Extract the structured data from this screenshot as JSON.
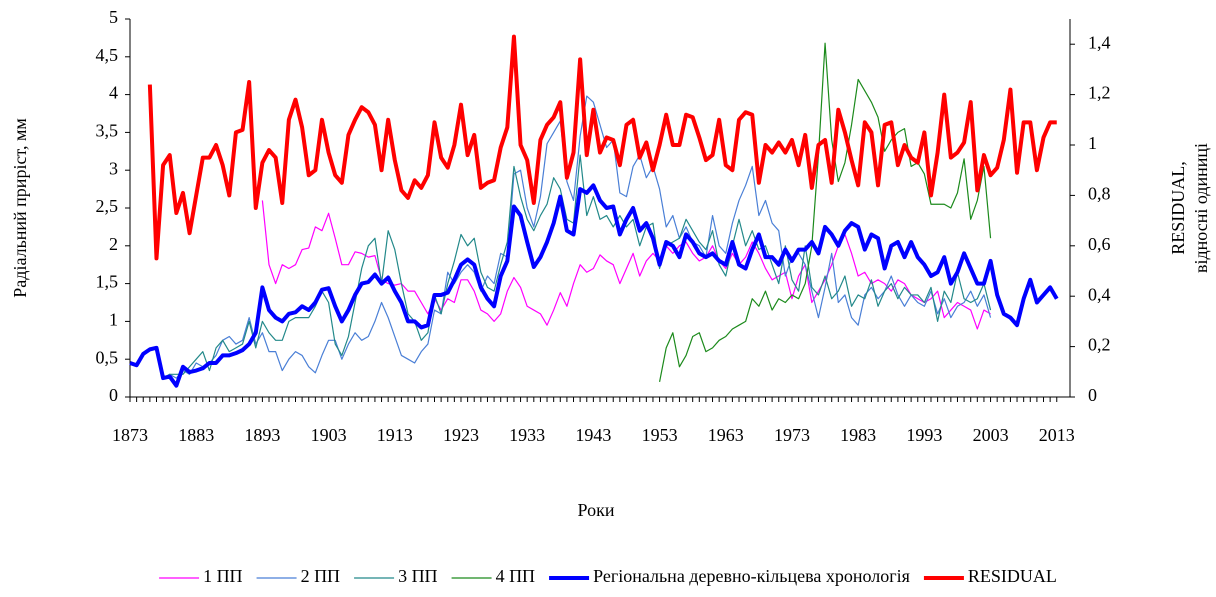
{
  "chart_data": {
    "type": "line",
    "x_label": "Роки",
    "y_label": "Радіальний приріст, мм",
    "y2_label": [
      "RESIDUAL,",
      "відносні одиниці"
    ],
    "xlim": [
      1873,
      2015
    ],
    "xticks": [
      1873,
      1883,
      1893,
      1903,
      1913,
      1923,
      1933,
      1943,
      1953,
      1963,
      1973,
      1983,
      1993,
      2003,
      2013
    ],
    "ylim": [
      0,
      5
    ],
    "yticks": [
      0,
      {
        "value": 0.5,
        "label": "0,5"
      },
      1,
      {
        "value": 1.5,
        "label": "1,5"
      },
      2,
      {
        "value": 2.5,
        "label": "2,5"
      },
      3,
      {
        "value": 3.5,
        "label": "3,5"
      },
      4,
      {
        "value": 4.5,
        "label": "4,5"
      },
      5
    ],
    "y2lim": [
      0,
      1.5
    ],
    "y2ticks": [
      0,
      {
        "value": 0.2,
        "label": "0,2"
      },
      {
        "value": 0.4,
        "label": "0,4"
      },
      {
        "value": 0.6,
        "label": "0,6"
      },
      {
        "value": 0.8,
        "label": "0,8"
      },
      1,
      {
        "value": 1.2,
        "label": "1,2"
      },
      {
        "value": 1.4,
        "label": "1,4"
      }
    ],
    "grid": false,
    "legend": "bottom",
    "x": [
      1873,
      1874,
      1875,
      1876,
      1877,
      1878,
      1879,
      1880,
      1881,
      1882,
      1883,
      1884,
      1885,
      1886,
      1887,
      1888,
      1889,
      1890,
      1891,
      1892,
      1893,
      1894,
      1895,
      1896,
      1897,
      1898,
      1899,
      1900,
      1901,
      1902,
      1903,
      1904,
      1905,
      1906,
      1907,
      1908,
      1909,
      1910,
      1911,
      1912,
      1913,
      1914,
      1915,
      1916,
      1917,
      1918,
      1919,
      1920,
      1921,
      1922,
      1923,
      1924,
      1925,
      1926,
      1927,
      1928,
      1929,
      1930,
      1931,
      1932,
      1933,
      1934,
      1935,
      1936,
      1937,
      1938,
      1939,
      1940,
      1941,
      1942,
      1943,
      1944,
      1945,
      1946,
      1947,
      1948,
      1949,
      1950,
      1951,
      1952,
      1953,
      1954,
      1955,
      1956,
      1957,
      1958,
      1959,
      1960,
      1961,
      1962,
      1963,
      1964,
      1965,
      1966,
      1967,
      1968,
      1969,
      1970,
      1971,
      1972,
      1973,
      1974,
      1975,
      1976,
      1977,
      1978,
      1979,
      1980,
      1981,
      1982,
      1983,
      1984,
      1985,
      1986,
      1987,
      1988,
      1989,
      1990,
      1991,
      1992,
      1993,
      1994,
      1995,
      1996,
      1997,
      1998,
      1999,
      2000,
      2001,
      2002,
      2003,
      2004,
      2005,
      2006,
      2007,
      2008,
      2009,
      2010,
      2011,
      2012,
      2013
    ],
    "series": [
      {
        "name": "1 ПП",
        "color": "#ff00ff",
        "line_width": 1.2,
        "values": [
          null,
          null,
          null,
          null,
          null,
          null,
          null,
          null,
          null,
          null,
          null,
          null,
          null,
          null,
          null,
          null,
          null,
          null,
          null,
          null,
          2.6,
          1.75,
          1.5,
          1.75,
          1.7,
          1.75,
          1.95,
          1.97,
          2.25,
          2.2,
          2.43,
          2.1,
          1.75,
          1.75,
          1.92,
          1.9,
          1.85,
          1.87,
          1.55,
          1.5,
          1.48,
          1.5,
          1.4,
          1.4,
          1.25,
          1.1,
          1.3,
          1.15,
          1.3,
          1.25,
          1.55,
          1.55,
          1.4,
          1.15,
          1.1,
          1.0,
          1.1,
          1.4,
          1.58,
          1.45,
          1.2,
          1.15,
          1.1,
          0.95,
          1.15,
          1.38,
          1.2,
          1.5,
          1.75,
          1.65,
          1.7,
          1.88,
          1.8,
          1.75,
          1.5,
          1.7,
          1.9,
          1.6,
          1.8,
          1.9,
          1.8,
          2.0,
          1.9,
          2.0,
          2.05,
          1.9,
          1.8,
          1.85,
          2.0,
          1.8,
          1.7,
          1.9,
          1.75,
          1.85,
          2.05,
          1.9,
          1.7,
          1.55,
          1.6,
          1.65,
          1.3,
          1.6,
          1.75,
          1.25,
          1.4,
          1.55,
          1.75,
          2.0,
          2.15,
          1.9,
          1.6,
          1.65,
          1.5,
          1.55,
          1.5,
          1.4,
          1.55,
          1.5,
          1.35,
          1.3,
          1.25,
          1.3,
          1.4,
          1.05,
          1.15,
          1.25,
          1.2,
          1.15,
          0.9,
          1.15,
          1.1,
          null,
          null,
          null,
          null,
          null,
          null,
          null,
          null,
          null,
          null
        ]
      },
      {
        "name": "2 ПП",
        "color": "#4a7fd6",
        "line_width": 1.2,
        "values": [
          null,
          null,
          null,
          null,
          null,
          0.25,
          0.3,
          0.25,
          0.35,
          0.3,
          0.45,
          0.4,
          0.45,
          0.55,
          0.75,
          0.8,
          0.7,
          0.75,
          1.05,
          0.7,
          0.85,
          0.6,
          0.6,
          0.35,
          0.5,
          0.6,
          0.55,
          0.4,
          0.32,
          0.55,
          0.75,
          0.75,
          0.5,
          0.7,
          0.85,
          0.75,
          0.8,
          1.0,
          1.25,
          1.05,
          0.8,
          0.55,
          0.5,
          0.45,
          0.6,
          0.7,
          1.15,
          1.1,
          1.65,
          1.5,
          1.65,
          1.75,
          1.65,
          1.4,
          1.6,
          1.5,
          1.9,
          1.85,
          2.95,
          3.0,
          2.5,
          2.25,
          2.65,
          3.35,
          3.5,
          3.65,
          2.85,
          2.6,
          3.45,
          3.98,
          3.9,
          3.6,
          3.3,
          3.4,
          2.7,
          2.65,
          3.05,
          3.2,
          2.9,
          3.05,
          2.75,
          2.25,
          2.4,
          2.1,
          2.25,
          2.05,
          2.0,
          1.85,
          2.4,
          2.0,
          1.9,
          2.3,
          2.6,
          2.8,
          3.05,
          2.4,
          2.6,
          2.3,
          2.2,
          1.6,
          1.85,
          1.9,
          1.75,
          1.4,
          1.05,
          1.45,
          1.9,
          1.25,
          1.35,
          1.05,
          0.95,
          1.35,
          1.45,
          1.3,
          1.4,
          1.6,
          1.35,
          1.2,
          1.35,
          1.25,
          1.2,
          1.4,
          1.1,
          1.3,
          1.05,
          1.2,
          1.25,
          1.4,
          1.2,
          1.35,
          1.05,
          null,
          null,
          null,
          null,
          null,
          null,
          null,
          null,
          null,
          null
        ]
      },
      {
        "name": "3 ПП",
        "color": "#23898a",
        "line_width": 1.2,
        "values": [
          null,
          null,
          null,
          null,
          null,
          0.25,
          0.3,
          0.3,
          0.3,
          0.4,
          0.5,
          0.6,
          0.35,
          0.65,
          0.75,
          0.6,
          0.65,
          0.7,
          1.0,
          0.65,
          1.0,
          0.85,
          0.75,
          0.75,
          1.0,
          1.05,
          1.05,
          1.05,
          1.2,
          1.4,
          1.25,
          0.7,
          0.55,
          0.8,
          1.25,
          1.7,
          2.0,
          2.1,
          1.5,
          2.2,
          1.95,
          1.5,
          1.1,
          1.0,
          0.75,
          0.85,
          1.35,
          1.1,
          1.5,
          1.8,
          2.15,
          2.0,
          2.1,
          1.65,
          1.45,
          1.4,
          1.75,
          2.05,
          3.05,
          2.65,
          2.35,
          2.2,
          2.4,
          2.55,
          2.9,
          2.75,
          2.35,
          2.3,
          3.2,
          2.4,
          2.65,
          2.35,
          2.4,
          2.25,
          2.4,
          2.25,
          2.35,
          2.0,
          2.25,
          2.3,
          1.7,
          2.0,
          2.05,
          2.1,
          2.35,
          2.2,
          2.05,
          1.95,
          2.2,
          1.75,
          1.6,
          2.0,
          2.35,
          2.0,
          2.2,
          1.95,
          2.0,
          1.75,
          1.5,
          2.0,
          1.55,
          1.4,
          2.0,
          1.45,
          1.35,
          1.6,
          1.3,
          1.4,
          1.6,
          1.2,
          1.35,
          1.3,
          1.55,
          1.2,
          1.4,
          1.5,
          1.3,
          1.45,
          1.35,
          1.35,
          1.25,
          1.45,
          1.0,
          1.4,
          1.25,
          1.65,
          1.3,
          1.25,
          1.3,
          1.5,
          1.15,
          null,
          null,
          null,
          null,
          null,
          null,
          null,
          null,
          null,
          null
        ]
      },
      {
        "name": "4 ПП",
        "color": "#1c8a1c",
        "line_width": 1.2,
        "values": [
          null,
          null,
          null,
          null,
          null,
          null,
          null,
          null,
          null,
          null,
          null,
          null,
          null,
          null,
          null,
          null,
          null,
          null,
          null,
          null,
          null,
          null,
          null,
          null,
          null,
          null,
          null,
          null,
          null,
          null,
          null,
          null,
          null,
          null,
          null,
          null,
          null,
          null,
          null,
          null,
          null,
          null,
          null,
          null,
          null,
          null,
          null,
          null,
          null,
          null,
          null,
          null,
          null,
          null,
          null,
          null,
          null,
          null,
          null,
          null,
          null,
          null,
          null,
          null,
          null,
          null,
          null,
          null,
          null,
          null,
          null,
          null,
          null,
          null,
          null,
          null,
          null,
          null,
          null,
          null,
          0.2,
          0.65,
          0.85,
          0.4,
          0.55,
          0.8,
          0.85,
          0.6,
          0.65,
          0.75,
          0.8,
          0.9,
          0.95,
          1.0,
          1.3,
          1.2,
          1.4,
          1.15,
          1.3,
          1.25,
          1.35,
          1.3,
          1.5,
          2.0,
          3.2,
          4.68,
          3.4,
          2.85,
          3.1,
          3.6,
          4.2,
          4.05,
          3.9,
          3.7,
          3.25,
          3.4,
          3.5,
          3.55,
          3.05,
          3.1,
          2.95,
          2.55,
          2.55,
          2.55,
          2.5,
          2.7,
          3.15,
          2.35,
          2.6,
          3.05,
          2.1,
          null,
          null,
          null,
          null,
          null,
          null,
          null,
          null,
          null,
          null
        ]
      },
      {
        "name": "Регіональна деревно-кільцева хронологія",
        "color": "#0000ff",
        "line_width": 4,
        "values": [
          0.45,
          0.42,
          0.57,
          0.63,
          0.65,
          0.25,
          0.27,
          0.15,
          0.4,
          0.33,
          0.35,
          0.38,
          0.45,
          0.45,
          0.55,
          0.55,
          0.58,
          0.62,
          0.7,
          0.85,
          1.45,
          1.15,
          1.05,
          1.0,
          1.1,
          1.12,
          1.2,
          1.15,
          1.25,
          1.42,
          1.44,
          1.2,
          1.0,
          1.15,
          1.35,
          1.5,
          1.52,
          1.62,
          1.5,
          1.58,
          1.4,
          1.25,
          1.0,
          1.0,
          0.92,
          0.95,
          1.35,
          1.35,
          1.38,
          1.55,
          1.75,
          1.82,
          1.75,
          1.45,
          1.3,
          1.2,
          1.6,
          1.8,
          2.52,
          2.4,
          2.05,
          1.72,
          1.85,
          2.05,
          2.3,
          2.65,
          2.2,
          2.15,
          2.75,
          2.7,
          2.8,
          2.6,
          2.5,
          2.52,
          2.15,
          2.35,
          2.5,
          2.2,
          2.3,
          2.1,
          1.75,
          2.05,
          2.0,
          1.85,
          2.15,
          2.05,
          1.9,
          1.85,
          1.9,
          1.8,
          1.75,
          2.05,
          1.75,
          1.7,
          1.95,
          2.15,
          1.85,
          1.85,
          1.75,
          1.95,
          1.8,
          1.95,
          1.95,
          2.05,
          1.9,
          2.25,
          2.15,
          2.0,
          2.2,
          2.3,
          2.25,
          1.95,
          2.15,
          2.1,
          1.7,
          2.0,
          2.05,
          1.85,
          2.05,
          1.85,
          1.75,
          1.6,
          1.65,
          1.85,
          1.5,
          1.65,
          1.9,
          1.7,
          1.5,
          1.5,
          1.8,
          1.35,
          1.1,
          1.05,
          0.95,
          1.3,
          1.55,
          1.25,
          1.35,
          1.45,
          1.3
        ]
      },
      {
        "name": "RESIDUAL",
        "color": "#ff0000",
        "line_width": 4,
        "axis": "y2",
        "values": [
          null,
          null,
          null,
          1.24,
          0.55,
          0.92,
          0.96,
          0.73,
          0.81,
          0.65,
          0.8,
          0.95,
          0.95,
          1.0,
          0.92,
          0.8,
          1.05,
          1.06,
          1.25,
          0.75,
          0.93,
          0.98,
          0.95,
          0.77,
          1.1,
          1.18,
          1.07,
          0.88,
          0.9,
          1.1,
          0.97,
          0.88,
          0.85,
          1.04,
          1.1,
          1.15,
          1.13,
          1.08,
          0.9,
          1.1,
          0.94,
          0.82,
          0.79,
          0.86,
          0.83,
          0.88,
          1.09,
          0.95,
          0.91,
          1.0,
          1.16,
          0.96,
          1.04,
          0.83,
          0.85,
          0.86,
          0.99,
          1.07,
          1.43,
          1.0,
          0.94,
          0.77,
          1.02,
          1.08,
          1.11,
          1.17,
          0.87,
          0.97,
          1.34,
          0.96,
          1.14,
          0.97,
          1.03,
          1.02,
          0.92,
          1.08,
          1.1,
          0.95,
          1.01,
          0.9,
          1.0,
          1.12,
          1.0,
          1.0,
          1.12,
          1.11,
          1.03,
          0.94,
          0.96,
          1.1,
          0.92,
          0.9,
          1.1,
          1.13,
          1.12,
          0.85,
          1.0,
          0.97,
          1.01,
          0.97,
          1.02,
          0.92,
          1.04,
          0.83,
          1.0,
          1.02,
          0.85,
          1.14,
          1.05,
          0.94,
          0.84,
          1.09,
          1.05,
          0.84,
          1.08,
          1.09,
          0.92,
          1.0,
          0.95,
          0.93,
          1.05,
          0.8,
          0.97,
          1.2,
          0.95,
          0.97,
          1.01,
          1.17,
          0.82,
          0.96,
          0.88,
          0.91,
          1.02,
          1.22,
          0.89,
          1.09,
          1.09,
          0.9,
          1.03,
          1.09,
          1.09
        ]
      }
    ]
  }
}
